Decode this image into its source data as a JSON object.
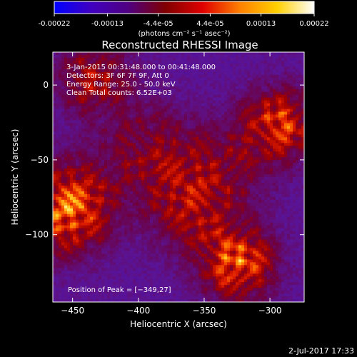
{
  "colorbar": {
    "tick_labels": [
      "-0.00022",
      "-0.00013",
      "-4.4e-05",
      "4.4e-05",
      "0.00013",
      "0.00022"
    ],
    "tick_values": [
      -0.00022,
      -0.00013,
      -4.4e-05,
      4.4e-05,
      0.00013,
      0.00022
    ],
    "range": [
      -0.00022,
      0.00022
    ],
    "unit_label": "(photons cm⁻² s⁻¹ asec⁻²)",
    "colormap_stops": [
      "#0000ff",
      "#4000c0",
      "#500080",
      "#800000",
      "#e00000",
      "#ff8000",
      "#ffd000",
      "#ffffff"
    ]
  },
  "chart_data": {
    "type": "heatmap",
    "title": "Reconstructed RHESSI Image",
    "xlabel": "Heliocentric X (arcsec)",
    "ylabel": "Heliocentric Y (arcsec)",
    "xlim": [
      -465,
      -274
    ],
    "ylim": [
      -145,
      22
    ],
    "x_ticks": [
      -450,
      -400,
      -350,
      -300
    ],
    "x_tick_labels": [
      "−450",
      "−400",
      "−350",
      "−300"
    ],
    "y_ticks": [
      -100,
      -50,
      0
    ],
    "y_tick_labels": [
      "−100",
      "−50",
      "0"
    ],
    "annotations": [
      "3-Jan-2015 00:31:48.000 to 00:41:48.000",
      "Detectors: 3F 6F 7F 9F, Att 0",
      "Energy Range: 25.0 - 50.0 keV",
      "Clean    Total counts: 6.52E+03"
    ],
    "peak_label": "Position of Peak = [−349,27]",
    "peak_position": [
      -349,
      27
    ]
  },
  "footer": {
    "date": "2-Jul-2017 17:33"
  }
}
